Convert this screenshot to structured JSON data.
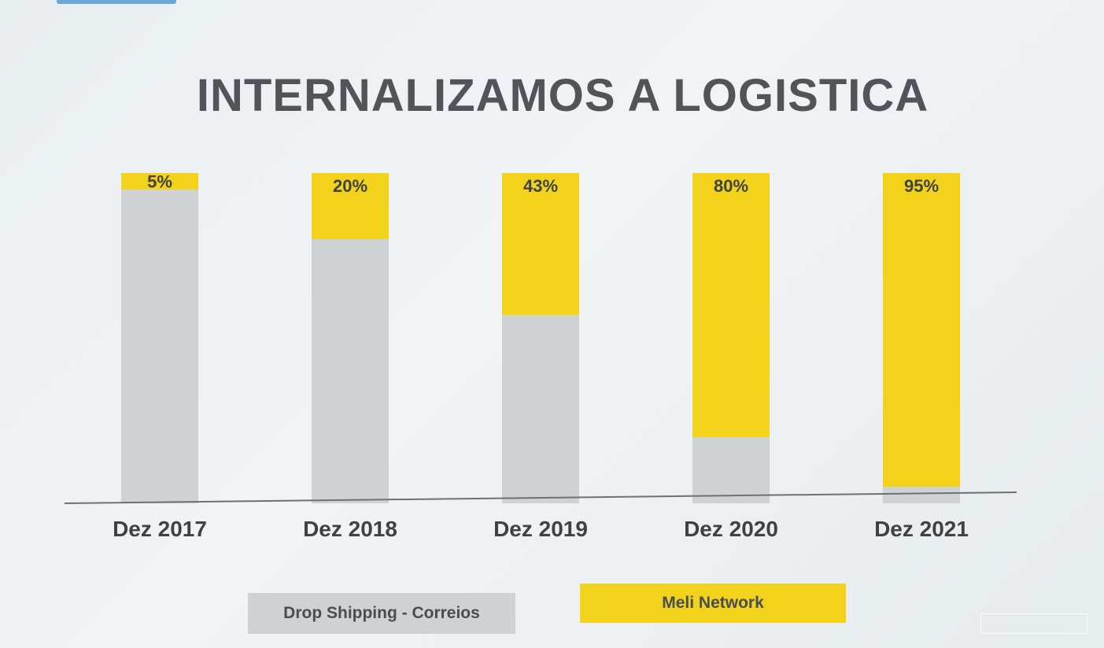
{
  "title": "INTERNALIZAMOS A LOGISTICA",
  "colors": {
    "meli": "#f2d21a",
    "drop": "#cfd2d4",
    "axis": "#6d7174",
    "label": "#3f4245"
  },
  "chart_data": {
    "type": "bar",
    "stacked": true,
    "normalized_percent": true,
    "categories": [
      "Dez 2017",
      "Dez 2018",
      "Dez 2019",
      "Dez 2020",
      "Dez 2021"
    ],
    "series": [
      {
        "name": "Drop Shipping - Correios",
        "values": [
          95,
          80,
          57,
          20,
          5
        ]
      },
      {
        "name": "Meli Network",
        "values": [
          5,
          20,
          43,
          80,
          95
        ]
      }
    ],
    "data_labels": [
      "5%",
      "20%",
      "43%",
      "80%",
      "95%"
    ],
    "ylim": [
      0,
      100
    ],
    "grid": false,
    "legend_position": "bottom"
  },
  "legend": {
    "drop_label": "Drop Shipping - Correios",
    "meli_label": "Meli Network"
  }
}
